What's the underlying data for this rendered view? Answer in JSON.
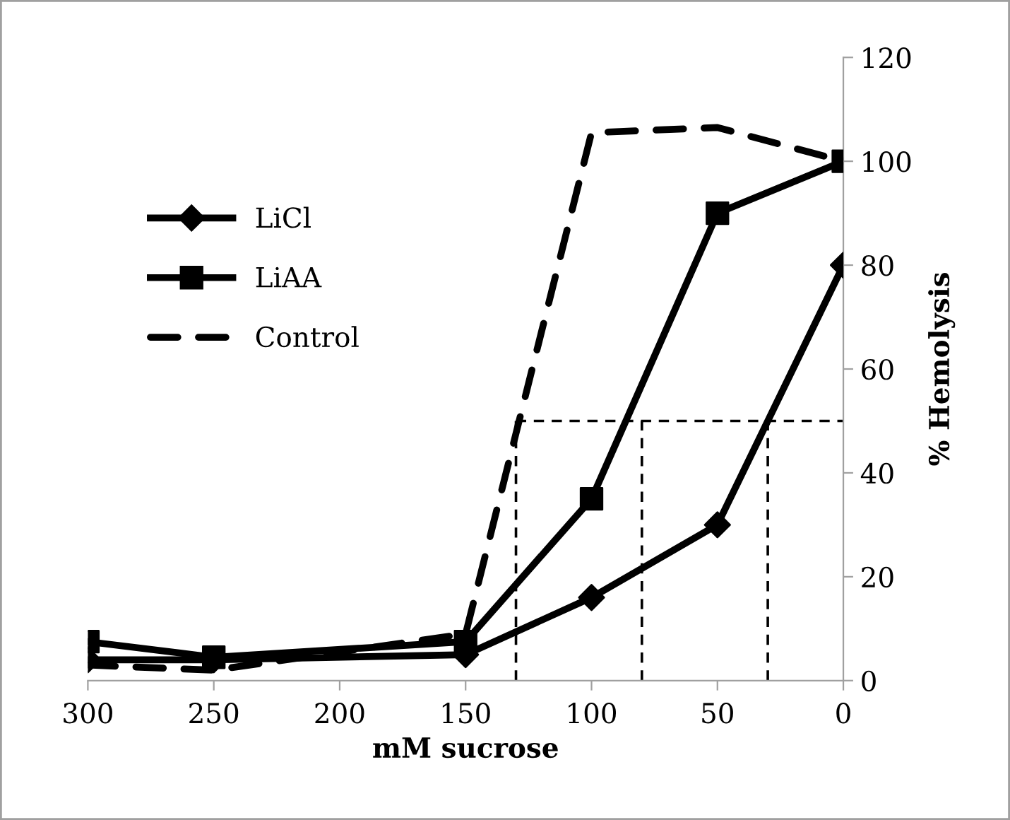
{
  "chart_data": {
    "type": "line",
    "xlabel": "mM sucrose",
    "ylabel": "% Hemolysis",
    "x": [
      300,
      250,
      150,
      100,
      50,
      0
    ],
    "series": [
      {
        "name": "LiCl",
        "color": "#000000",
        "marker": "diamond",
        "line_style": "solid",
        "values": [
          4,
          4,
          5,
          16,
          30,
          80
        ]
      },
      {
        "name": "LiAA",
        "color": "#000000",
        "marker": "square",
        "line_style": "solid",
        "values": [
          7.5,
          4.5,
          7.5,
          35,
          90,
          100
        ]
      },
      {
        "name": "Control",
        "color": "#000000",
        "marker": "none",
        "line_style": "dashed",
        "values": [
          3,
          2,
          9,
          105.5,
          106.5,
          100
        ]
      }
    ],
    "xlim": [
      300,
      0
    ],
    "xticks": [
      300,
      250,
      200,
      150,
      100,
      50,
      0
    ],
    "ylim": [
      0,
      120
    ],
    "yticks": [
      0,
      20,
      40,
      60,
      80,
      100,
      120
    ],
    "ref_lines": [
      {
        "axis": "y",
        "value": 50,
        "color": "#000000",
        "line_style": "dashed"
      },
      {
        "axis": "x",
        "value": 130,
        "color": "#000000",
        "line_style": "dashed"
      },
      {
        "axis": "x",
        "value": 80,
        "color": "#000000",
        "line_style": "dashed"
      },
      {
        "axis": "x",
        "value": 30,
        "color": "#000000",
        "line_style": "dashed"
      }
    ],
    "grid": false,
    "legend": "top left"
  }
}
